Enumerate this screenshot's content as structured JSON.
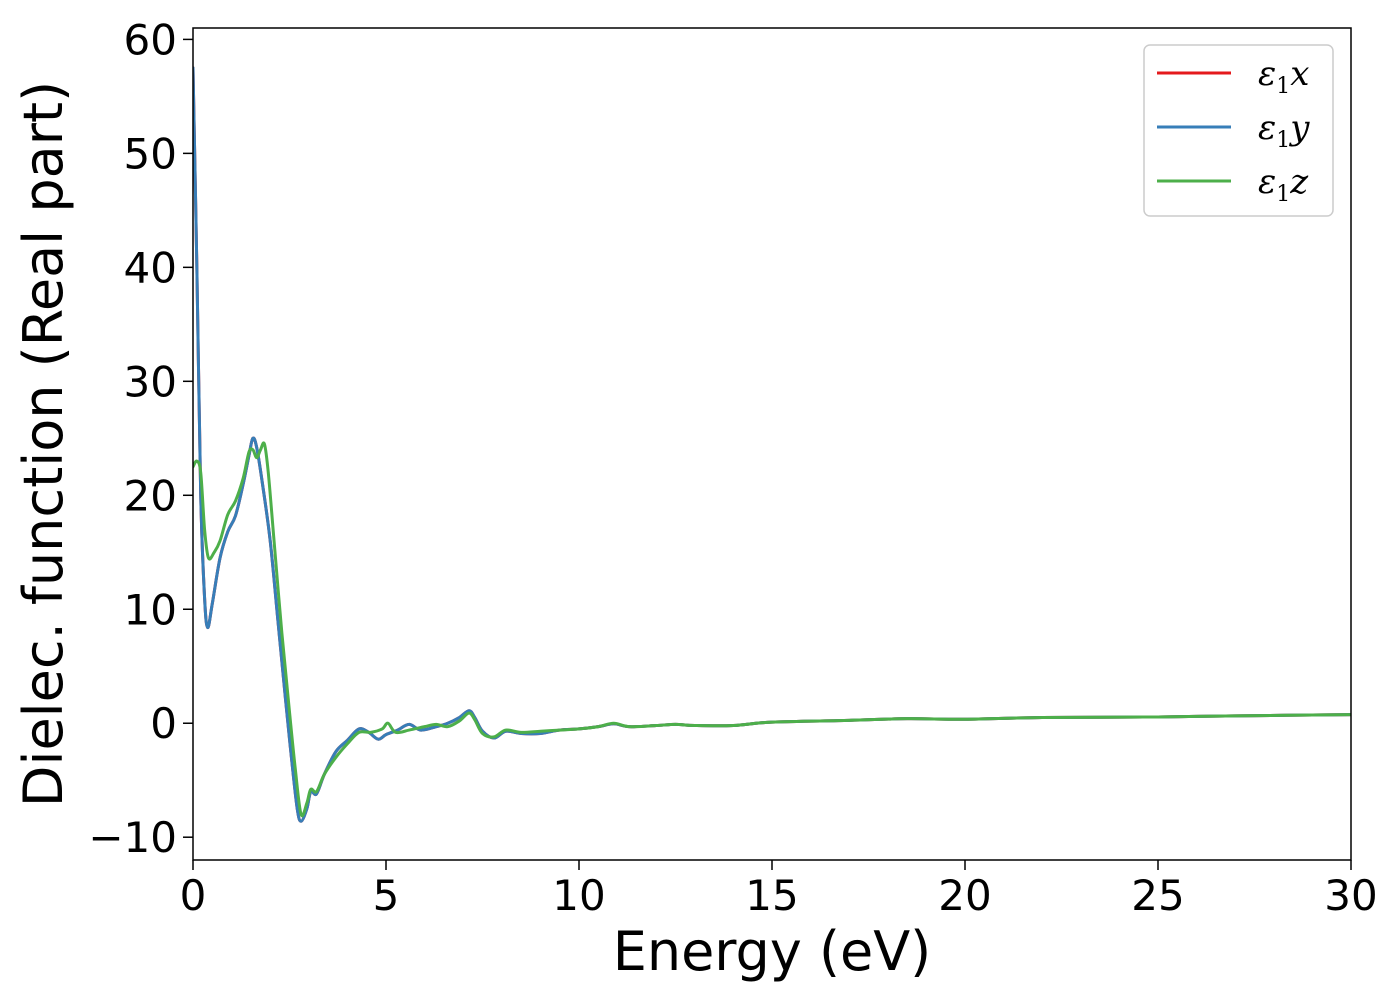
{
  "chart_data": {
    "type": "line",
    "xlabel": "Energy (eV)",
    "ylabel": "Dielec. function (Real part)",
    "xlim": [
      0,
      30
    ],
    "ylim": [
      -12,
      61
    ],
    "xticks": [
      0,
      5,
      10,
      15,
      20,
      25,
      30
    ],
    "xtick_labels": [
      "0",
      "5",
      "10",
      "15",
      "20",
      "25",
      "30"
    ],
    "yticks": [
      -10,
      0,
      10,
      20,
      30,
      40,
      50,
      60
    ],
    "ytick_labels": [
      "−10",
      "0",
      "10",
      "20",
      "30",
      "40",
      "50",
      "60"
    ],
    "grid": false,
    "legend_position": "top-right",
    "series": [
      {
        "name": "ε1x",
        "legend_symbol": "ε",
        "legend_sub": "1",
        "legend_var": "x",
        "color": "#e41a1c",
        "points": [
          [
            0.0,
            57.5
          ],
          [
            0.1,
            40
          ],
          [
            0.2,
            20
          ],
          [
            0.3,
            11
          ],
          [
            0.38,
            8.4
          ],
          [
            0.5,
            10.5
          ],
          [
            0.7,
            14.5
          ],
          [
            0.9,
            16.8
          ],
          [
            1.1,
            18.2
          ],
          [
            1.3,
            21
          ],
          [
            1.45,
            23.5
          ],
          [
            1.55,
            25
          ],
          [
            1.65,
            24.2
          ],
          [
            1.8,
            21
          ],
          [
            2.0,
            16
          ],
          [
            2.2,
            9
          ],
          [
            2.4,
            2
          ],
          [
            2.55,
            -3
          ],
          [
            2.7,
            -7.5
          ],
          [
            2.8,
            -8.6
          ],
          [
            2.95,
            -7.5
          ],
          [
            3.05,
            -6
          ],
          [
            3.2,
            -6.2
          ],
          [
            3.4,
            -4.5
          ],
          [
            3.7,
            -2.5
          ],
          [
            4.0,
            -1.5
          ],
          [
            4.3,
            -0.5
          ],
          [
            4.55,
            -0.8
          ],
          [
            4.8,
            -1.4
          ],
          [
            5.0,
            -1
          ],
          [
            5.3,
            -0.6
          ],
          [
            5.6,
            -0.1
          ],
          [
            5.9,
            -0.6
          ],
          [
            6.3,
            -0.3
          ],
          [
            6.6,
            0
          ],
          [
            6.9,
            0.5
          ],
          [
            7.15,
            1.1
          ],
          [
            7.3,
            0.5
          ],
          [
            7.5,
            -0.7
          ],
          [
            7.8,
            -1.3
          ],
          [
            8.1,
            -0.7
          ],
          [
            8.5,
            -0.9
          ],
          [
            9.0,
            -0.9
          ],
          [
            9.5,
            -0.6
          ],
          [
            10.0,
            -0.5
          ],
          [
            10.5,
            -0.3
          ],
          [
            10.9,
            -0.05
          ],
          [
            11.3,
            -0.3
          ],
          [
            12.0,
            -0.2
          ],
          [
            12.5,
            -0.1
          ],
          [
            13.0,
            -0.2
          ],
          [
            14.0,
            -0.2
          ],
          [
            15.0,
            0.1
          ],
          [
            17.0,
            0.25
          ],
          [
            18.5,
            0.4
          ],
          [
            20.0,
            0.35
          ],
          [
            22.0,
            0.5
          ],
          [
            25.0,
            0.55
          ],
          [
            27.0,
            0.65
          ],
          [
            30.0,
            0.75
          ]
        ]
      },
      {
        "name": "ε1y",
        "legend_symbol": "ε",
        "legend_sub": "1",
        "legend_var": "y",
        "color": "#377eb8",
        "points": [
          [
            0.0,
            57.5
          ],
          [
            0.1,
            40
          ],
          [
            0.2,
            20
          ],
          [
            0.3,
            11
          ],
          [
            0.38,
            8.4
          ],
          [
            0.5,
            10.5
          ],
          [
            0.7,
            14.5
          ],
          [
            0.9,
            16.8
          ],
          [
            1.1,
            18.2
          ],
          [
            1.3,
            21
          ],
          [
            1.45,
            23.5
          ],
          [
            1.55,
            25
          ],
          [
            1.65,
            24.2
          ],
          [
            1.8,
            21
          ],
          [
            2.0,
            16
          ],
          [
            2.2,
            9
          ],
          [
            2.4,
            2
          ],
          [
            2.55,
            -3
          ],
          [
            2.7,
            -7.5
          ],
          [
            2.8,
            -8.6
          ],
          [
            2.95,
            -7.5
          ],
          [
            3.05,
            -6
          ],
          [
            3.2,
            -6.2
          ],
          [
            3.4,
            -4.5
          ],
          [
            3.7,
            -2.5
          ],
          [
            4.0,
            -1.5
          ],
          [
            4.3,
            -0.5
          ],
          [
            4.55,
            -0.8
          ],
          [
            4.8,
            -1.4
          ],
          [
            5.0,
            -1
          ],
          [
            5.3,
            -0.6
          ],
          [
            5.6,
            -0.1
          ],
          [
            5.9,
            -0.6
          ],
          [
            6.3,
            -0.3
          ],
          [
            6.6,
            0
          ],
          [
            6.9,
            0.5
          ],
          [
            7.15,
            1.1
          ],
          [
            7.3,
            0.5
          ],
          [
            7.5,
            -0.7
          ],
          [
            7.8,
            -1.3
          ],
          [
            8.1,
            -0.7
          ],
          [
            8.5,
            -0.9
          ],
          [
            9.0,
            -0.9
          ],
          [
            9.5,
            -0.6
          ],
          [
            10.0,
            -0.5
          ],
          [
            10.5,
            -0.3
          ],
          [
            10.9,
            -0.05
          ],
          [
            11.3,
            -0.3
          ],
          [
            12.0,
            -0.2
          ],
          [
            12.5,
            -0.1
          ],
          [
            13.0,
            -0.2
          ],
          [
            14.0,
            -0.2
          ],
          [
            15.0,
            0.1
          ],
          [
            17.0,
            0.25
          ],
          [
            18.5,
            0.4
          ],
          [
            20.0,
            0.35
          ],
          [
            22.0,
            0.5
          ],
          [
            25.0,
            0.55
          ],
          [
            27.0,
            0.65
          ],
          [
            30.0,
            0.75
          ]
        ]
      },
      {
        "name": "ε1z",
        "legend_symbol": "ε",
        "legend_sub": "1",
        "legend_var": "z",
        "color": "#4daf4a",
        "points": [
          [
            0.0,
            22.5
          ],
          [
            0.1,
            23
          ],
          [
            0.2,
            22
          ],
          [
            0.3,
            17
          ],
          [
            0.4,
            14.5
          ],
          [
            0.55,
            15
          ],
          [
            0.7,
            16
          ],
          [
            0.9,
            18.3
          ],
          [
            1.1,
            19.5
          ],
          [
            1.3,
            21.5
          ],
          [
            1.45,
            23.8
          ],
          [
            1.55,
            24
          ],
          [
            1.65,
            23.3
          ],
          [
            1.75,
            24
          ],
          [
            1.85,
            24.5
          ],
          [
            1.95,
            22
          ],
          [
            2.1,
            16
          ],
          [
            2.3,
            8
          ],
          [
            2.5,
            1
          ],
          [
            2.65,
            -4
          ],
          [
            2.8,
            -8
          ],
          [
            2.95,
            -7
          ],
          [
            3.05,
            -5.8
          ],
          [
            3.2,
            -6
          ],
          [
            3.4,
            -4.5
          ],
          [
            3.7,
            -3
          ],
          [
            4.0,
            -1.8
          ],
          [
            4.3,
            -0.8
          ],
          [
            4.6,
            -0.8
          ],
          [
            4.9,
            -0.5
          ],
          [
            5.05,
            0
          ],
          [
            5.25,
            -0.8
          ],
          [
            5.6,
            -0.6
          ],
          [
            6.0,
            -0.3
          ],
          [
            6.3,
            -0.1
          ],
          [
            6.6,
            -0.3
          ],
          [
            6.9,
            0.2
          ],
          [
            7.15,
            0.9
          ],
          [
            7.3,
            0.3
          ],
          [
            7.5,
            -0.9
          ],
          [
            7.8,
            -1.2
          ],
          [
            8.1,
            -0.6
          ],
          [
            8.5,
            -0.8
          ],
          [
            9.0,
            -0.7
          ],
          [
            9.5,
            -0.6
          ],
          [
            10.0,
            -0.5
          ],
          [
            10.5,
            -0.3
          ],
          [
            10.9,
            0
          ],
          [
            11.3,
            -0.3
          ],
          [
            12.0,
            -0.2
          ],
          [
            12.5,
            -0.1
          ],
          [
            13.0,
            -0.2
          ],
          [
            14.0,
            -0.2
          ],
          [
            15.0,
            0.1
          ],
          [
            17.0,
            0.25
          ],
          [
            18.5,
            0.4
          ],
          [
            20.0,
            0.35
          ],
          [
            22.0,
            0.5
          ],
          [
            25.0,
            0.55
          ],
          [
            27.0,
            0.65
          ],
          [
            30.0,
            0.75
          ]
        ]
      }
    ]
  }
}
